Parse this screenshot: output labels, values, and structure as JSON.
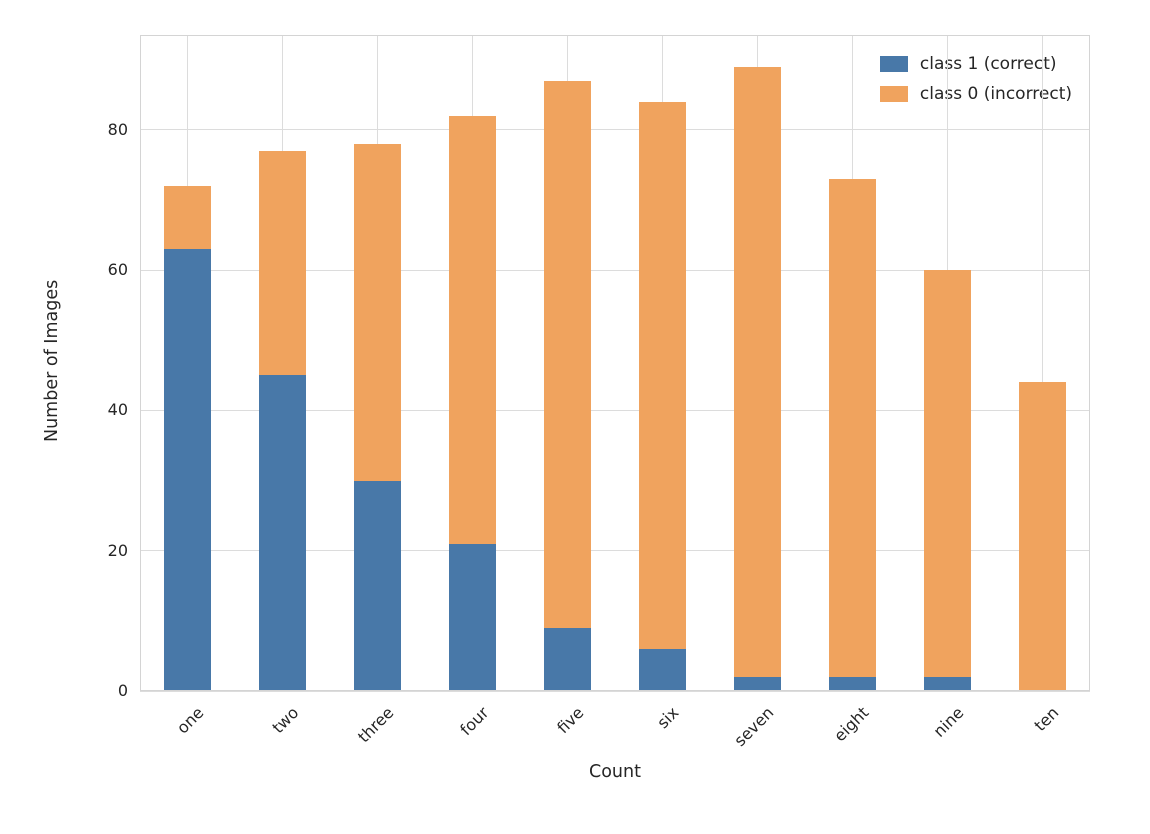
{
  "chart_data": {
    "type": "bar",
    "stacked": true,
    "title": "",
    "xlabel": "Count",
    "ylabel": "Number of Images",
    "categories": [
      "one",
      "two",
      "three",
      "four",
      "five",
      "six",
      "seven",
      "eight",
      "nine",
      "ten"
    ],
    "series": [
      {
        "name": "class 1 (correct)",
        "color": "#4878a8",
        "values": [
          63,
          45,
          30,
          21,
          9,
          6,
          2,
          2,
          2,
          0
        ]
      },
      {
        "name": "class 0 (incorrect)",
        "color": "#f0a35e",
        "values": [
          9,
          32,
          48,
          61,
          78,
          78,
          87,
          71,
          58,
          44
        ]
      }
    ],
    "totals": [
      72,
      77,
      78,
      82,
      87,
      84,
      89,
      73,
      60,
      44
    ],
    "ylim": [
      0,
      93.5
    ],
    "yticks": [
      0,
      20,
      40,
      60,
      80
    ],
    "grid": true,
    "legend_position": "upper right"
  }
}
